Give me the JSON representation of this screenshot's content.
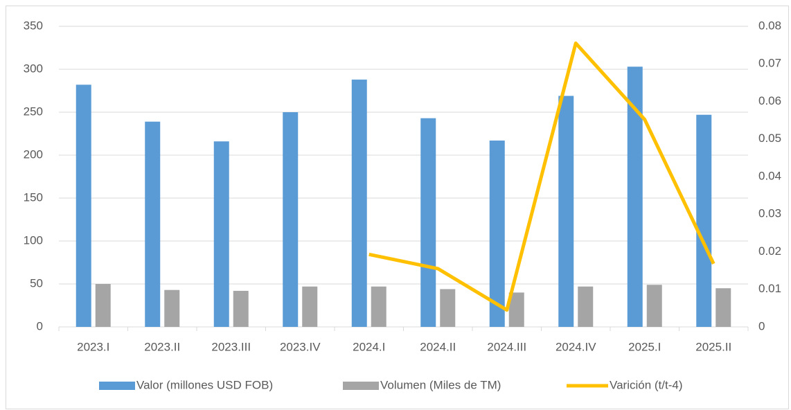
{
  "chart_data": {
    "type": "bar",
    "categories": [
      "2023.I",
      "2023.II",
      "2023.III",
      "2023.IV",
      "2024.I",
      "2024.II",
      "2024.III",
      "2024.IV",
      "2025.I",
      "2025.II"
    ],
    "series": [
      {
        "name": "Valor (millones USD FOB)",
        "color": "#5b9bd5",
        "type": "bar",
        "values": [
          282,
          239,
          216,
          250,
          288,
          243,
          217,
          269,
          303,
          247
        ]
      },
      {
        "name": "Volumen (Miles de TM)",
        "color": "#a5a5a5",
        "type": "bar",
        "values": [
          50,
          43,
          42,
          47,
          47,
          44,
          40,
          47,
          49,
          45
        ]
      },
      {
        "name": "Varición (t/t-4)",
        "color": "#ffc000",
        "type": "line",
        "axis": "y2",
        "values": [
          null,
          null,
          null,
          null,
          0.0193,
          0.0155,
          0.0045,
          0.0755,
          0.0552,
          0.0168
        ]
      }
    ],
    "ylim": [
      0,
      350
    ],
    "yticks": [
      0,
      50,
      100,
      150,
      200,
      250,
      300,
      350
    ],
    "y2lim": [
      0,
      0.08
    ],
    "y2ticks": [
      0,
      0.01,
      0.02,
      0.03,
      0.04,
      0.05,
      0.06,
      0.07,
      0.08
    ],
    "grid": true,
    "legend": "bottom"
  }
}
